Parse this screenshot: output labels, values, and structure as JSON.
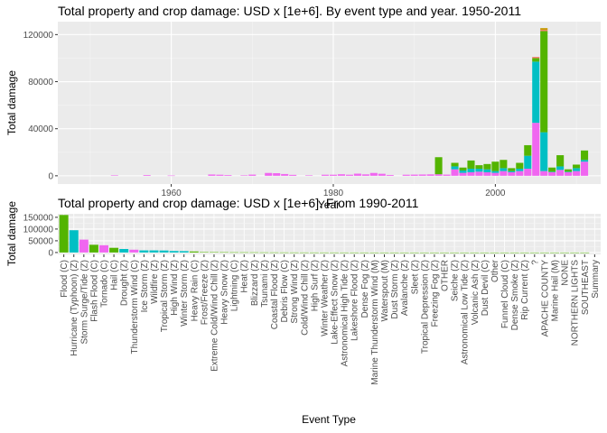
{
  "chart_data": [
    {
      "type": "bar",
      "title": "Total property and crop damage: USD x [1e+6]. By event type and year. 1950-2011",
      "xlabel": "Year",
      "ylabel": "Total damage",
      "xlim": [
        1946,
        2013
      ],
      "ylim": [
        -7000,
        131000
      ],
      "x_ticks": [
        1960,
        1980,
        2000
      ],
      "y_ticks": [
        0,
        40000,
        80000,
        120000
      ],
      "y_tick_labels": [
        "0",
        "40000",
        "80000",
        "120000"
      ],
      "stacked": true,
      "grid": true,
      "legend": "none",
      "series": [
        {
          "color": "#f066f0",
          "values": [
            [
              1953,
              400
            ],
            [
              1957,
              600
            ],
            [
              1960,
              200
            ],
            [
              1965,
              1100
            ],
            [
              1966,
              900
            ],
            [
              1967,
              600
            ],
            [
              1969,
              300
            ],
            [
              1970,
              1000
            ],
            [
              1972,
              2400
            ],
            [
              1973,
              2200
            ],
            [
              1974,
              1500
            ],
            [
              1975,
              800
            ],
            [
              1977,
              300
            ],
            [
              1979,
              900
            ],
            [
              1980,
              900
            ],
            [
              1981,
              1300
            ],
            [
              1982,
              900
            ],
            [
              1983,
              1800
            ],
            [
              1984,
              1200
            ],
            [
              1985,
              2400
            ],
            [
              1986,
              1700
            ],
            [
              1987,
              700
            ],
            [
              1989,
              900
            ],
            [
              1990,
              1000
            ],
            [
              1991,
              1100
            ],
            [
              1992,
              1200
            ],
            [
              1993,
              1300
            ],
            [
              1994,
              1000
            ],
            [
              1995,
              5500
            ],
            [
              1996,
              2500
            ],
            [
              1997,
              3000
            ],
            [
              1998,
              3500
            ],
            [
              1999,
              3000
            ],
            [
              2000,
              2500
            ],
            [
              2001,
              4000
            ],
            [
              2002,
              3000
            ],
            [
              2003,
              4000
            ],
            [
              2004,
              6000
            ],
            [
              2005,
              45000
            ],
            [
              2006,
              4000
            ],
            [
              2007,
              3000
            ],
            [
              2008,
              5000
            ],
            [
              2009,
              3000
            ],
            [
              2010,
              4000
            ],
            [
              2011,
              12000
            ]
          ]
        },
        {
          "color": "#00bfc4",
          "values": [
            [
              1995,
              2500
            ],
            [
              1996,
              2000
            ],
            [
              1997,
              3000
            ],
            [
              1998,
              2500
            ],
            [
              1999,
              2500
            ],
            [
              2000,
              1500
            ],
            [
              2001,
              2500
            ],
            [
              2002,
              1000
            ],
            [
              2003,
              2000
            ],
            [
              2004,
              11000
            ],
            [
              2005,
              52000
            ],
            [
              2006,
              33000
            ],
            [
              2007,
              500
            ],
            [
              2008,
              3000
            ],
            [
              2009,
              500
            ],
            [
              2010,
              2500
            ],
            [
              2011,
              1500
            ]
          ]
        },
        {
          "color": "#53b400",
          "values": [
            [
              1993,
              14500
            ],
            [
              1995,
              3000
            ],
            [
              1996,
              2500
            ],
            [
              1997,
              7000
            ],
            [
              1998,
              3000
            ],
            [
              1999,
              4500
            ],
            [
              2000,
              8000
            ],
            [
              2001,
              7000
            ],
            [
              2002,
              2500
            ],
            [
              2003,
              5000
            ],
            [
              2004,
              9000
            ],
            [
              2005,
              3000
            ],
            [
              2006,
              86000
            ],
            [
              2007,
              3500
            ],
            [
              2008,
              9500
            ],
            [
              2009,
              2000
            ],
            [
              2010,
              3000
            ],
            [
              2011,
              8000
            ]
          ]
        },
        {
          "color": "#f8766d",
          "values": [
            [
              2005,
              1000
            ],
            [
              2006,
              1000
            ]
          ]
        },
        {
          "color": "#c49a00",
          "values": [
            [
              2006,
              1500
            ]
          ]
        }
      ]
    },
    {
      "type": "bar",
      "title": "Total property and crop damage: USD x [1e+6]. From 1990-2011",
      "xlabel": "Event Type",
      "ylabel": "Total damage",
      "ylim": [
        -8000,
        165000
      ],
      "y_ticks": [
        0,
        50000,
        100000,
        150000
      ],
      "y_tick_labels": [
        "0",
        "50000",
        "100000",
        "150000"
      ],
      "grid": true,
      "legend": "none",
      "categories": [
        "Flood (C)",
        "Hurricane (Typhoon) (Z)",
        "Storm Surge/Tide (Z)",
        "Flash Flood (C)",
        "Tornado (C)",
        "Hail (C)",
        "Drought (Z)",
        "Thunderstorm Wind (C)",
        "Ice Storm (Z)",
        "Wildfire (Z)",
        "Tropical Storm (Z)",
        "High Wind (Z)",
        "Winter Storm (Z)",
        "Heavy Rain (C)",
        "Frost/Freeze (Z)",
        "Extreme Cold/Wind Chill (Z)",
        "Heavy Snow (Z)",
        "Lightning (C)",
        "Heat (Z)",
        "Blizzard (Z)",
        "Tsunami (Z)",
        "Coastal Flood (Z)",
        "Debris Flow (C)",
        "Strong Wind (Z)",
        "Cold/Wind Chill (Z)",
        "High Surf (Z)",
        "Winter Weather (Z)",
        "Lake-Effect Snow (Z)",
        "Astronomical High Tide (Z)",
        "Lakeshore Flood (Z)",
        "Dense Fog (Z)",
        "Marine Thunderstorm Wind (M)",
        "Waterspout (M)",
        "Dust Storm (Z)",
        "Avalanche (Z)",
        "Sleet (Z)",
        "Tropical Depression (Z)",
        "Freezing Fog (Z)",
        "OTHER",
        "Seiche (Z)",
        "Astronomical Low Tide (Z)",
        "Volcanic Ash (Z)",
        "Dust Devil (C)",
        "Other",
        "Funnel Cloud (C)",
        "Dense Smoke (Z)",
        "Rip Current (Z)",
        "?",
        "APACHE COUNTY",
        "Marine Hail (M)",
        "NONE",
        "NORTHERN LIGHTS",
        "SOUTHEAST",
        "Summary"
      ],
      "values": [
        160000,
        95000,
        55000,
        33000,
        31000,
        20000,
        15000,
        12000,
        9000,
        9000,
        8500,
        6500,
        6000,
        4500,
        2000,
        1500,
        1300,
        1000,
        900,
        800,
        600,
        500,
        400,
        300,
        250,
        200,
        180,
        150,
        120,
        100,
        80,
        60,
        50,
        40,
        30,
        25,
        20,
        15,
        12,
        10,
        8,
        6,
        5,
        4,
        3,
        3,
        2,
        2,
        1,
        1,
        1,
        1,
        1,
        0
      ],
      "colors": [
        "#53b400",
        "#00bfc4",
        "#f066f0",
        "#53b400",
        "#f066f0",
        "#53b400",
        "#00bfc4",
        "#f066f0",
        "#00bfc4",
        "#00bfc4",
        "#00bfc4",
        "#00bfc4",
        "#00bfc4",
        "#53b400",
        "#53b400"
      ]
    }
  ]
}
